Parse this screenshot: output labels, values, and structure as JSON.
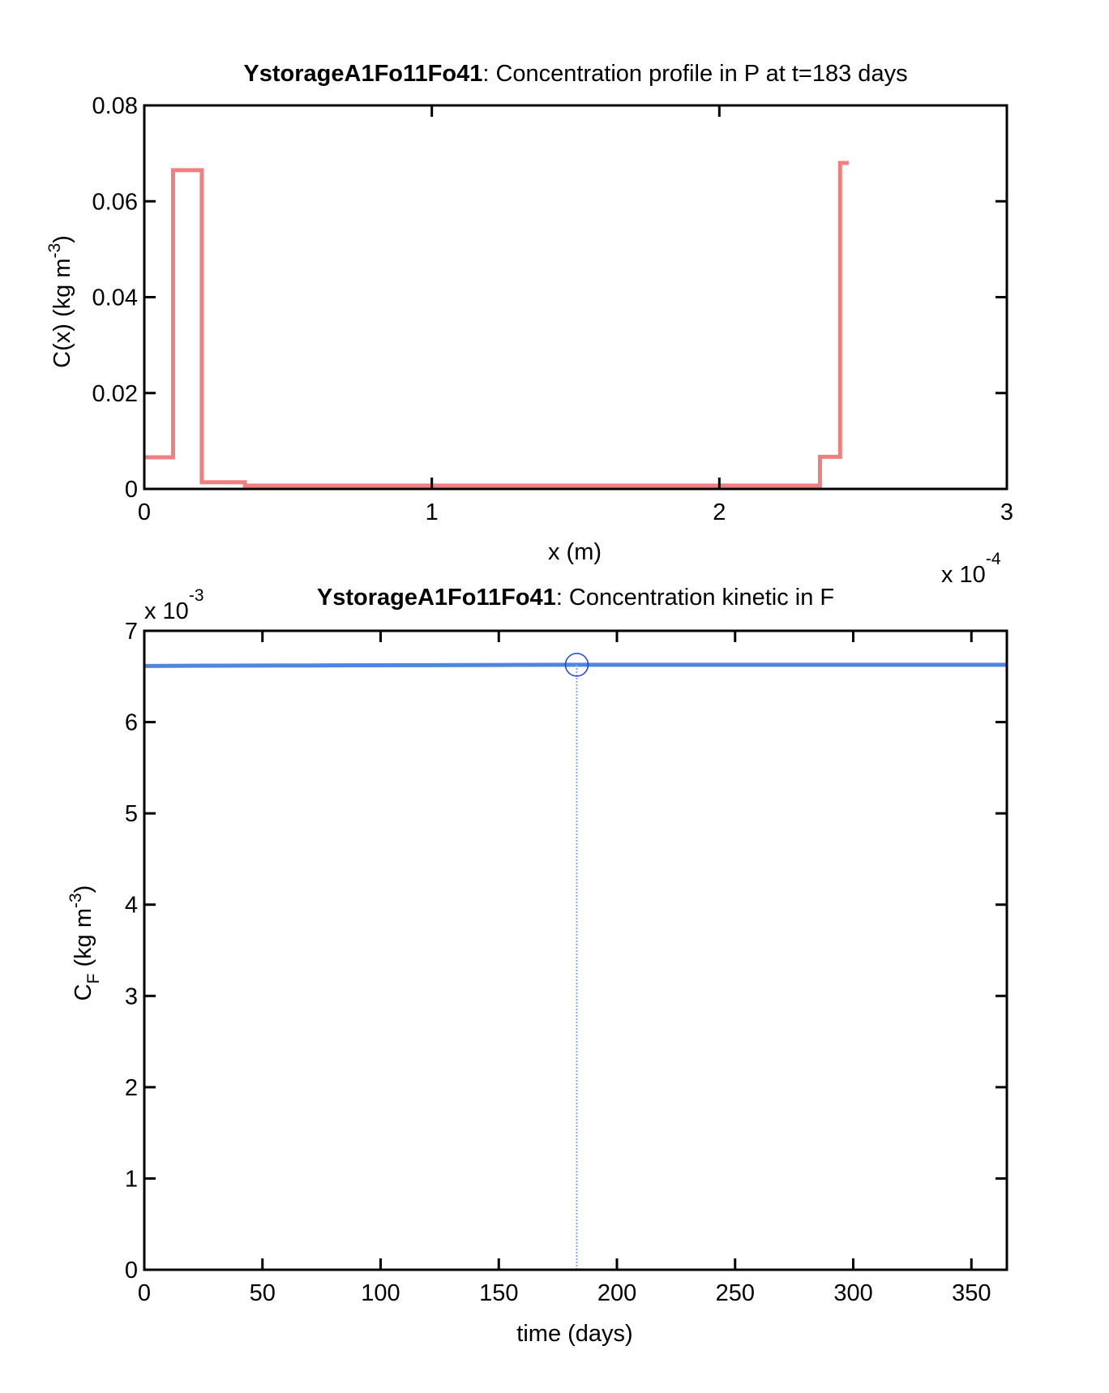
{
  "chart_data": [
    {
      "type": "line",
      "title_bold": "YstorageA1Fo11Fo41",
      "title_rest": ": Concentration profile in P at t=183 days",
      "xlabel": "x (m)",
      "ylabel": "C(x) (kg m",
      "ylabel_sup": "-3",
      "ylabel_close": ")",
      "x_exponent_base": "x 10",
      "x_exponent_power": "-4",
      "xlim": [
        0,
        3
      ],
      "ylim": [
        0,
        0.08
      ],
      "xticks": [
        0,
        1,
        2,
        3
      ],
      "xtick_labels": [
        "0",
        "1",
        "2",
        "3"
      ],
      "yticks": [
        0,
        0.02,
        0.04,
        0.06,
        0.08
      ],
      "ytick_labels": [
        "0",
        "0.02",
        "0.04",
        "0.06",
        "0.08"
      ],
      "x_scale": 0.0001,
      "grid": false,
      "series": [
        {
          "color": "#f08080",
          "style": "step",
          "x": [
            0,
            0.1,
            0.1,
            0.2,
            0.2,
            0.35,
            0.35,
            2.35,
            2.35,
            2.42,
            2.42,
            2.45
          ],
          "values": [
            0.0066,
            0.0066,
            0.0665,
            0.0665,
            0.0014,
            0.0014,
            0.0007,
            0.0007,
            0.0067,
            0.0067,
            0.068,
            0.068
          ]
        }
      ]
    },
    {
      "type": "line",
      "title_bold": "YstorageA1Fo11Fo41",
      "title_rest": ": Concentration kinetic in F",
      "xlabel": "time (days)",
      "ylabel_main": "C",
      "ylabel_sub": "F",
      "ylabel_units": " (kg m",
      "ylabel_sup": "-3",
      "ylabel_close": ")",
      "y_exponent_base": "x 10",
      "y_exponent_power": "-3",
      "xlim": [
        0,
        365
      ],
      "ylim": [
        0,
        7
      ],
      "xticks": [
        0,
        50,
        100,
        150,
        200,
        250,
        300,
        350
      ],
      "xtick_labels": [
        "0",
        "50",
        "100",
        "150",
        "200",
        "250",
        "300",
        "350"
      ],
      "yticks": [
        0,
        1,
        2,
        3,
        4,
        5,
        6,
        7
      ],
      "ytick_labels": [
        "0",
        "1",
        "2",
        "3",
        "4",
        "5",
        "6",
        "7"
      ],
      "y_scale": 0.001,
      "grid": false,
      "series": [
        {
          "color": "#4f86e0",
          "x": [
            0,
            30,
            60,
            90,
            120,
            150,
            183,
            210,
            240,
            270,
            300,
            330,
            365
          ],
          "values": [
            6.615,
            6.618,
            6.62,
            6.622,
            6.624,
            6.626,
            6.628,
            6.628,
            6.628,
            6.628,
            6.628,
            6.628,
            6.628
          ]
        }
      ],
      "marker": {
        "x": 183,
        "value": 6.628,
        "color": "#1f3fdf"
      },
      "vline": {
        "x": 183,
        "color": "#7f9fff"
      }
    }
  ]
}
